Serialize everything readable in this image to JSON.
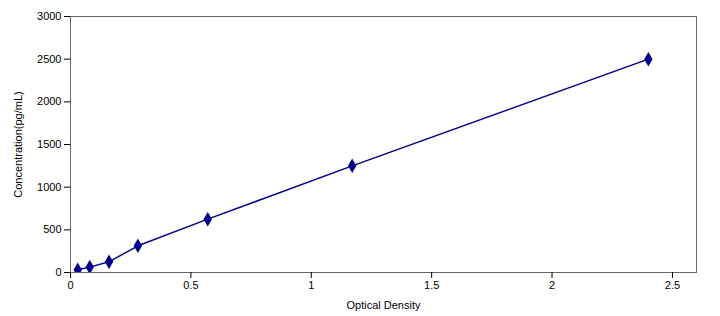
{
  "chart_data": {
    "type": "line",
    "x": [
      0.03,
      0.08,
      0.16,
      0.28,
      0.57,
      1.17,
      2.4
    ],
    "values": [
      31,
      63,
      125,
      313,
      625,
      1250,
      2500
    ],
    "color": "#00008B",
    "marker": "diamond",
    "line_style": "solid",
    "xlabel": "Optical Density",
    "ylabel": "Concentration(pg/mL)",
    "xlim": [
      0,
      2.6
    ],
    "ylim": [
      0,
      3000
    ],
    "xticks": [
      0,
      0.5,
      1.0,
      1.5,
      2.0,
      2.5
    ],
    "yticks": [
      0,
      500,
      1000,
      1500,
      2000,
      2500,
      3000
    ],
    "grid": false
  }
}
